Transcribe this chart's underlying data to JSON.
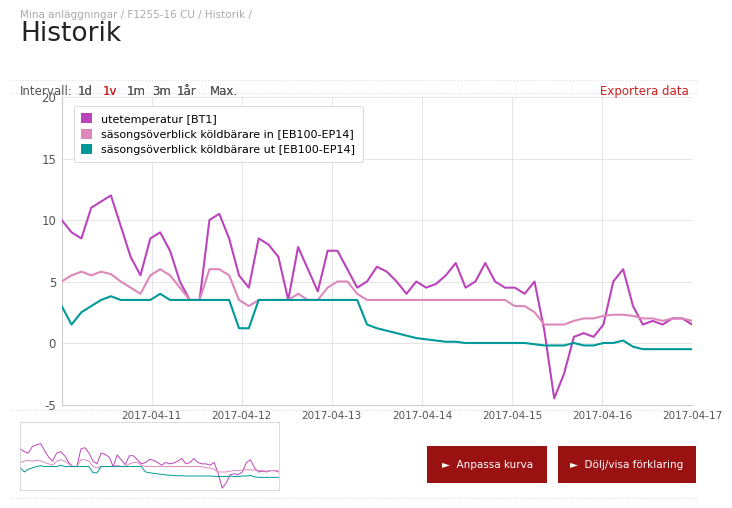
{
  "title": "Historik",
  "breadcrumb": "Mina anläggningar / F1255-16 CU / Historik /",
  "interval_label": "Intervall:",
  "interval_options": [
    "1d",
    "1v",
    "1m",
    "3m",
    "1år",
    "Max."
  ],
  "interval_active_idx": 1,
  "export_label": "Exportera data",
  "legend": [
    {
      "label": "utetemperatur [BT1]",
      "color": "#bb44bb",
      "lw": 1.5
    },
    {
      "label": "säsongsöverblick köldbärare in [EB100-EP14]",
      "color": "#dd88bb",
      "lw": 1.5
    },
    {
      "label": "säsongsöverblick köldbärare ut [EB100-EP14]",
      "color": "#009999",
      "lw": 1.5
    }
  ],
  "ylim": [
    -5,
    20
  ],
  "yticks": [
    -5,
    0,
    5,
    10,
    15,
    20
  ],
  "x_tick_labels": [
    "2017-04-11",
    "2017-04-12",
    "2017-04-13",
    "2017-04-14",
    "2017-04-15",
    "2017-04-16",
    "2017-04-17"
  ],
  "grid_color": "#e0e0e0",
  "utetemperatur": [
    10.0,
    9.0,
    8.5,
    11.0,
    11.5,
    12.0,
    9.5,
    7.0,
    5.5,
    8.5,
    9.0,
    7.5,
    5.0,
    3.5,
    3.5,
    10.0,
    10.5,
    8.5,
    5.5,
    4.5,
    8.5,
    8.0,
    7.0,
    3.5,
    7.8,
    6.0,
    4.2,
    7.5,
    7.5,
    6.0,
    4.5,
    5.0,
    6.2,
    5.8,
    5.0,
    4.0,
    5.0,
    4.5,
    4.8,
    5.5,
    6.5,
    4.5,
    5.0,
    6.5,
    5.0,
    4.5,
    4.5,
    4.0,
    5.0,
    1.0,
    -4.5,
    -2.5,
    0.5,
    0.8,
    0.5,
    1.5,
    5.0,
    6.0,
    3.0,
    1.5,
    1.8,
    1.5,
    2.0,
    2.0,
    1.5
  ],
  "koldbarare_in": [
    5.0,
    5.5,
    5.8,
    5.5,
    5.8,
    5.6,
    5.0,
    4.5,
    4.0,
    5.5,
    6.0,
    5.5,
    4.5,
    3.5,
    3.5,
    6.0,
    6.0,
    5.5,
    3.5,
    3.0,
    3.5,
    3.5,
    3.5,
    3.5,
    4.0,
    3.5,
    3.5,
    4.5,
    5.0,
    5.0,
    4.0,
    3.5,
    3.5,
    3.5,
    3.5,
    3.5,
    3.5,
    3.5,
    3.5,
    3.5,
    3.5,
    3.5,
    3.5,
    3.5,
    3.5,
    3.5,
    3.0,
    3.0,
    2.5,
    1.5,
    1.5,
    1.5,
    1.8,
    2.0,
    2.0,
    2.2,
    2.3,
    2.3,
    2.2,
    2.0,
    2.0,
    1.8,
    2.0,
    2.0,
    1.8
  ],
  "koldbarare_ut": [
    3.0,
    1.5,
    2.5,
    3.0,
    3.5,
    3.8,
    3.5,
    3.5,
    3.5,
    3.5,
    4.0,
    3.5,
    3.5,
    3.5,
    3.5,
    3.5,
    3.5,
    3.5,
    1.2,
    1.2,
    3.5,
    3.5,
    3.5,
    3.5,
    3.5,
    3.5,
    3.5,
    3.5,
    3.5,
    3.5,
    3.5,
    1.5,
    1.2,
    1.0,
    0.8,
    0.6,
    0.4,
    0.3,
    0.2,
    0.1,
    0.1,
    0.0,
    0.0,
    0.0,
    0.0,
    0.0,
    0.0,
    0.0,
    -0.1,
    -0.2,
    -0.2,
    -0.2,
    0.0,
    -0.2,
    -0.2,
    0.0,
    0.0,
    0.2,
    -0.3,
    -0.5,
    -0.5,
    -0.5,
    -0.5,
    -0.5,
    -0.5
  ],
  "button_color": "#991111",
  "button_label1": "►  Anpassa kurva",
  "button_label2": "►  Dölj/visa förklaring",
  "breadcrumb_color": "#aaaaaa",
  "title_color": "#222222",
  "interval_gray_color": "#555555",
  "interval_red_color": "#cc2222",
  "text_color": "#555555"
}
